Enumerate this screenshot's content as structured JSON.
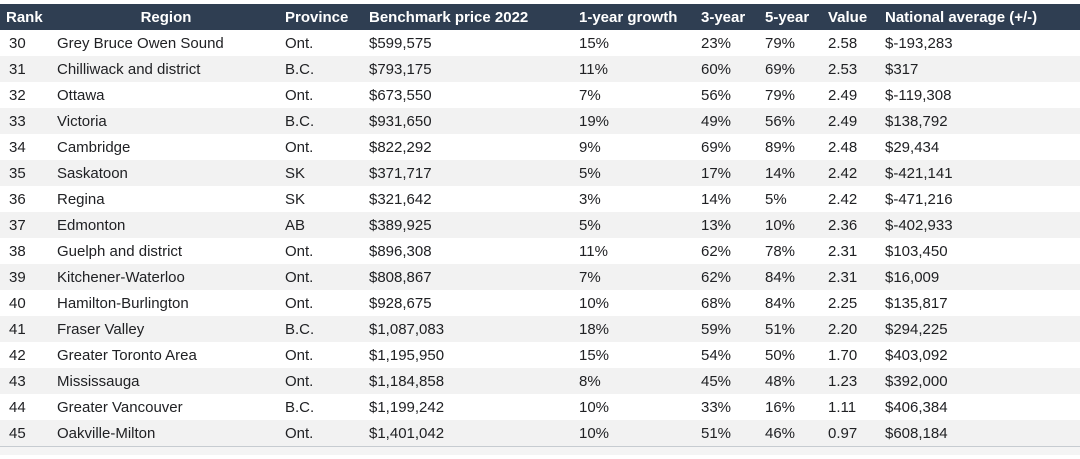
{
  "colors": {
    "header_bg": "#2f3e52",
    "header_text": "#ffffff",
    "row_alt": "#f2f2f2",
    "row_bg": "#ffffff",
    "text": "#202124",
    "border": "#c7ccd1",
    "footer_strip": "#f4f4f4"
  },
  "chart_data": {
    "type": "table",
    "title": "",
    "columns": [
      {
        "key": "rank",
        "label": "Rank"
      },
      {
        "key": "region",
        "label": "Region"
      },
      {
        "key": "province",
        "label": "Province"
      },
      {
        "key": "benchmark-price-2022",
        "label": "Benchmark price 2022"
      },
      {
        "key": "1-year-growth",
        "label": "1-year growth"
      },
      {
        "key": "3-year",
        "label": "3-year"
      },
      {
        "key": "5-year",
        "label": "5-year"
      },
      {
        "key": "value",
        "label": "Value"
      },
      {
        "key": "national-average",
        "label": "National average (+/-)"
      }
    ],
    "rows": [
      [
        "30",
        "Grey Bruce Owen Sound",
        "Ont.",
        "$599,575",
        "15%",
        "23%",
        "79%",
        "2.58",
        "$-193,283"
      ],
      [
        "31",
        "Chilliwack and district",
        "B.C.",
        "$793,175",
        "11%",
        "60%",
        "69%",
        "2.53",
        "$317"
      ],
      [
        "32",
        "Ottawa",
        "Ont.",
        "$673,550",
        "7%",
        "56%",
        "79%",
        "2.49",
        "$-119,308"
      ],
      [
        "33",
        "Victoria",
        "B.C.",
        "$931,650",
        "19%",
        "49%",
        "56%",
        "2.49",
        "$138,792"
      ],
      [
        "34",
        "Cambridge",
        "Ont.",
        "$822,292",
        "9%",
        "69%",
        "89%",
        "2.48",
        "$29,434"
      ],
      [
        "35",
        "Saskatoon",
        "SK",
        "$371,717",
        "5%",
        "17%",
        "14%",
        "2.42",
        "$-421,141"
      ],
      [
        "36",
        "Regina",
        "SK",
        "$321,642",
        "3%",
        "14%",
        "5%",
        "2.42",
        "$-471,216"
      ],
      [
        "37",
        "Edmonton",
        "AB",
        "$389,925",
        "5%",
        "13%",
        "10%",
        "2.36",
        "$-402,933"
      ],
      [
        "38",
        "Guelph and district",
        "Ont.",
        "$896,308",
        "11%",
        "62%",
        "78%",
        "2.31",
        "$103,450"
      ],
      [
        "39",
        "Kitchener-Waterloo",
        "Ont.",
        "$808,867",
        "7%",
        "62%",
        "84%",
        "2.31",
        "$16,009"
      ],
      [
        "40",
        "Hamilton-Burlington",
        "Ont.",
        "$928,675",
        "10%",
        "68%",
        "84%",
        "2.25",
        "$135,817"
      ],
      [
        "41",
        "Fraser Valley",
        "B.C.",
        "$1,087,083",
        "18%",
        "59%",
        "51%",
        "2.20",
        "$294,225"
      ],
      [
        "42",
        "Greater Toronto Area",
        "Ont.",
        "$1,195,950",
        "15%",
        "54%",
        "50%",
        "1.70",
        "$403,092"
      ],
      [
        "43",
        "Mississauga",
        "Ont.",
        "$1,184,858",
        "8%",
        "45%",
        "48%",
        "1.23",
        "$392,000"
      ],
      [
        "44",
        "Greater Vancouver",
        "B.C.",
        "$1,199,242",
        "10%",
        "33%",
        "16%",
        "1.11",
        "$406,384"
      ],
      [
        "45",
        "Oakville-Milton",
        "Ont.",
        "$1,401,042",
        "10%",
        "51%",
        "46%",
        "0.97",
        "$608,184"
      ]
    ]
  }
}
